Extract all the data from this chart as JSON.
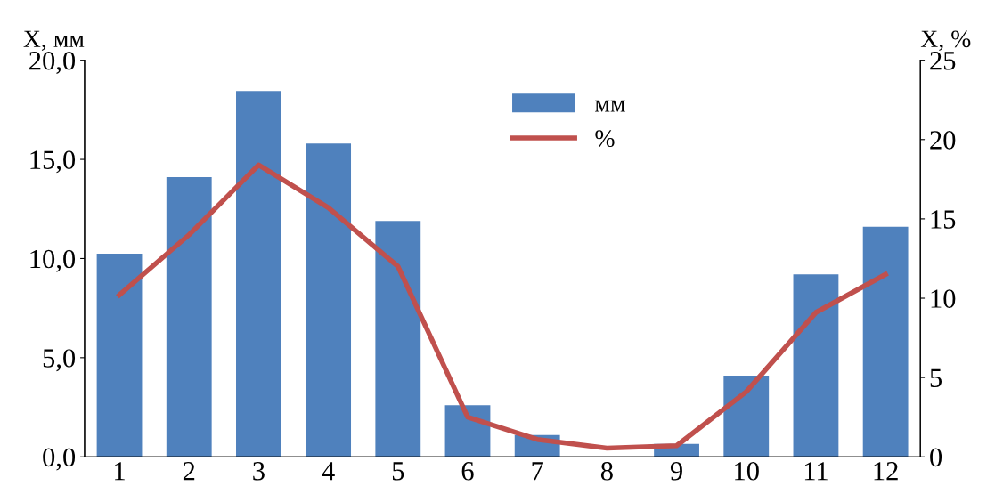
{
  "chart_data": {
    "type": "bar",
    "ylabel": "X, мм",
    "y2label": "X, %",
    "categories": [
      "1",
      "2",
      "3",
      "4",
      "5",
      "6",
      "7",
      "8",
      "9",
      "10",
      "11",
      "12"
    ],
    "series": [
      {
        "name": "мм",
        "color": "#4f81bd",
        "values": [
          10.25,
          14.1,
          18.45,
          15.8,
          11.9,
          2.6,
          1.1,
          null,
          0.65,
          4.1,
          9.2,
          11.6
        ]
      },
      {
        "name": "%",
        "type": "line",
        "axis": "y2",
        "color": "#c0504d",
        "marker": "none",
        "line_style": "solid",
        "values": [
          10.2,
          14.0,
          18.4,
          15.7,
          12.0,
          2.5,
          1.1,
          0.55,
          0.7,
          4.1,
          9.1,
          11.5
        ]
      }
    ],
    "ylim": [
      0,
      20
    ],
    "yticks": [
      {
        "value": 0,
        "label": "0,0"
      },
      {
        "value": 5,
        "label": "5,0"
      },
      {
        "value": 10,
        "label": "10,0"
      },
      {
        "value": 15,
        "label": "15,0"
      },
      {
        "value": 20,
        "label": "20,0"
      }
    ],
    "y2lim": [
      0,
      25
    ],
    "y2ticks": [
      0,
      5,
      10,
      15,
      20,
      25
    ],
    "grid": false,
    "legend": "top"
  }
}
